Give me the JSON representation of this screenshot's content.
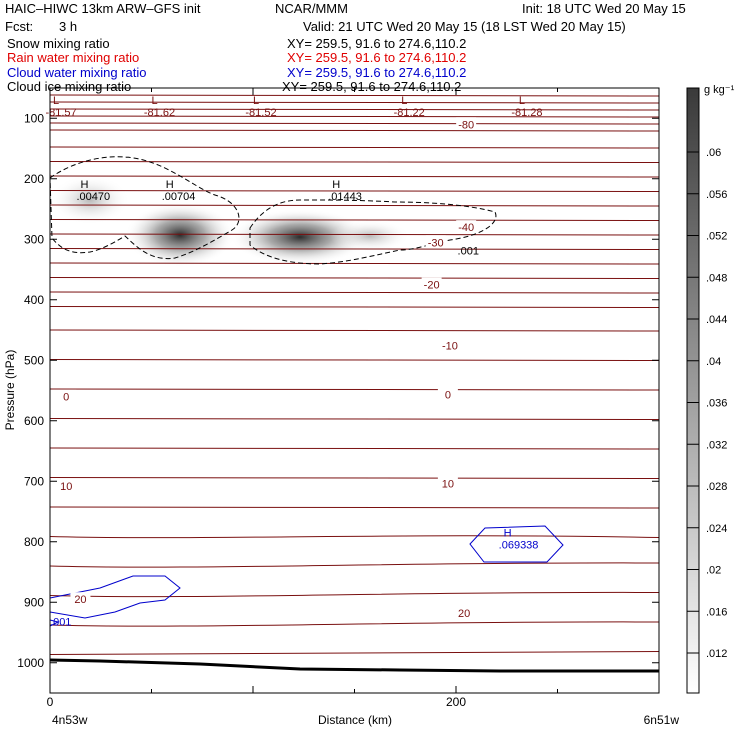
{
  "header": {
    "title_left": "HAIC–HIWC 13km ARW–GFS init",
    "org": "NCAR/MMM",
    "init": "Init: 18 UTC Wed 20 May 15",
    "fcst_label": "Fcst:",
    "fcst_value": "3 h",
    "valid": "Valid: 21 UTC Wed 20 May 15 (18 LST Wed 20 May 15)",
    "fields": [
      {
        "name": "Snow mixing ratio",
        "xy": "XY= 259.5, 91.6 to 274.6,110.2",
        "color": "#000000"
      },
      {
        "name": "Rain water mixing ratio",
        "xy": "XY= 259.5, 91.6 to 274.6,110.2",
        "color": "#e00000"
      },
      {
        "name": "Cloud water mixing ratio",
        "xy": "XY= 259.5, 91.6 to 274.6,110.2",
        "color": "#0000cc"
      },
      {
        "name": "Cloud ice mixing ratio",
        "xy": "XY= 259.5, 91.6 to 274.6,110.2",
        "color": "#000000"
      }
    ]
  },
  "chart_data": {
    "type": "heatmap",
    "xlabel": "Distance (km)",
    "ylabel": "Pressure (hPa)",
    "xlim": [
      0,
      300
    ],
    "ylim": [
      1050,
      50
    ],
    "x_ticks": [
      0,
      200
    ],
    "y_ticks": [
      100,
      200,
      300,
      400,
      500,
      600,
      700,
      800,
      900,
      1000
    ],
    "x_end_labels": [
      "4n53w",
      "6n51w"
    ],
    "colorbar": {
      "unit": "g kg⁻¹",
      "ticks": [
        ".012",
        ".016",
        ".02",
        ".024",
        ".028",
        ".032",
        ".036",
        ".04",
        ".044",
        ".048",
        ".052",
        ".056",
        ".06"
      ]
    },
    "temperature_labels": [
      {
        "text": "-40",
        "x": 205,
        "p": 280
      },
      {
        "text": "-30",
        "x": 190,
        "p": 305
      },
      {
        "text": "-20",
        "x": 188,
        "p": 375
      },
      {
        "text": "-10",
        "x": 197,
        "p": 476
      },
      {
        "text": "0",
        "x": 8,
        "p": 560
      },
      {
        "text": "0",
        "x": 196,
        "p": 557
      },
      {
        "text": "10",
        "x": 8,
        "p": 708
      },
      {
        "text": "10",
        "x": 196,
        "p": 704
      },
      {
        "text": "20",
        "x": 15,
        "p": 895
      },
      {
        "text": "20",
        "x": 204,
        "p": 918
      },
      {
        "text": "-80",
        "x": 205,
        "p": 110
      }
    ],
    "lows": [
      {
        "label": "L",
        "value": "-81.57",
        "x": 1.5
      },
      {
        "label": "L",
        "value": "-81.62",
        "x": 50
      },
      {
        "label": "L",
        "value": "-81.52",
        "x": 100
      },
      {
        "label": "L",
        "value": "-81.22",
        "x": 173
      },
      {
        "label": "L",
        "value": "-81.28",
        "x": 231
      }
    ],
    "snow_maxima": [
      {
        "label": "H",
        "value": ".00470",
        "x": 16,
        "p": 285
      },
      {
        "label": "H",
        "value": ".00704",
        "x": 58,
        "p": 285
      },
      {
        "label": "H",
        "value": ".01443",
        "x": 140,
        "p": 285
      }
    ],
    "cloud_water_maxima": [
      {
        "label": "H",
        "value": ".069338",
        "x": 222,
        "p": 795
      },
      {
        "value": ".001",
        "x": 1,
        "p": 922
      }
    ],
    "ice_contour_label": ".001",
    "ice_contour_label_pos": {
      "x": 185,
      "p": 305
    }
  }
}
